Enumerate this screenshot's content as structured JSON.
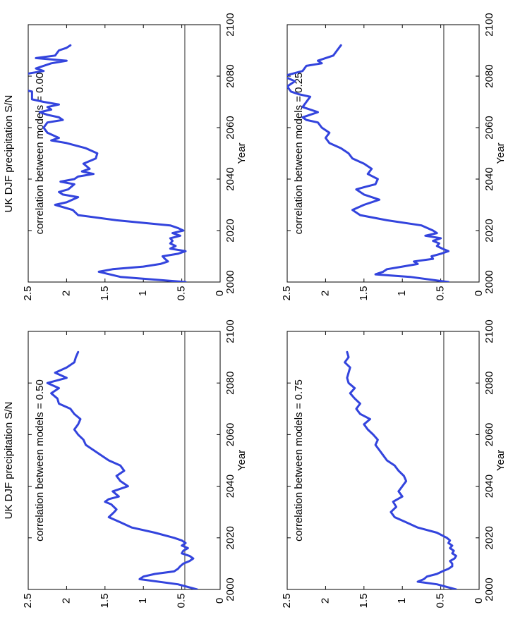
{
  "figure": {
    "ylabel": "UK DJF precipitation S/N",
    "line_color": "#3344dd"
  },
  "chart_data": [
    {
      "type": "line",
      "title": "correlation between models = 0.00",
      "xlabel": "Year",
      "ylabel": "UK DJF precipitation S/N",
      "xlim": [
        2000,
        2100
      ],
      "ylim": [
        0,
        2.5
      ],
      "xticks": [
        "2000",
        "2020",
        "2040",
        "2060",
        "2080",
        "2100"
      ],
      "yticks": [
        "0",
        "0.5",
        "1",
        "1.5",
        "2",
        "2.5"
      ],
      "reference_line": 0.46,
      "series": [
        {
          "x": [
            2000,
            2002,
            2004,
            2005,
            2006,
            2007,
            2008,
            2009,
            2010,
            2011,
            2012,
            2013,
            2014,
            2015,
            2016,
            2017,
            2018,
            2019,
            2020,
            2021,
            2022,
            2024,
            2026,
            2028,
            2030,
            2031,
            2033,
            2034,
            2035,
            2036,
            2038,
            2039,
            2040,
            2041,
            2042,
            2043,
            2044,
            2046,
            2048,
            2050,
            2052,
            2054,
            2055,
            2056,
            2058,
            2060,
            2062,
            2063,
            2064,
            2065,
            2066,
            2067,
            2068,
            2069,
            2070,
            2071,
            2074,
            2075,
            2076,
            2077,
            2078,
            2079,
            2080,
            2082,
            2083,
            2085,
            2086,
            2087,
            2088,
            2090,
            2091,
            2092
          ],
          "y": [
            0.45,
            1.3,
            1.58,
            1.4,
            1.0,
            0.78,
            0.68,
            0.72,
            0.75,
            0.55,
            0.45,
            0.65,
            0.58,
            0.65,
            0.62,
            0.65,
            0.52,
            0.62,
            0.48,
            0.55,
            0.65,
            1.35,
            1.85,
            1.92,
            2.15,
            2.0,
            1.85,
            2.05,
            2.1,
            1.98,
            1.9,
            2.08,
            1.9,
            1.85,
            1.65,
            1.8,
            1.7,
            1.78,
            1.62,
            1.6,
            1.75,
            2.0,
            2.2,
            2.1,
            2.25,
            2.3,
            2.25,
            2.05,
            2.1,
            2.25,
            2.35,
            2.2,
            2.25,
            2.1,
            2.3,
            2.45,
            2.45,
            2.6,
            2.65,
            2.6,
            2.75,
            2.65,
            2.7,
            2.3,
            2.4,
            2.2,
            2.0,
            2.4,
            2.15,
            2.1,
            2.0,
            1.95
          ]
        }
      ]
    },
    {
      "type": "line",
      "title": "correlation between models = 0.25",
      "xlabel": "Year",
      "ylabel": "",
      "xlim": [
        2000,
        2100
      ],
      "ylim": [
        0,
        2.5
      ],
      "xticks": [
        "2000",
        "2020",
        "2040",
        "2060",
        "2080",
        "2100"
      ],
      "yticks": [
        "0",
        "0.5",
        "1",
        "1.5",
        "2",
        "2.5"
      ],
      "reference_line": 0.46,
      "series": [
        {
          "x": [
            2000,
            2002,
            2003,
            2004,
            2005,
            2006,
            2007,
            2008,
            2009,
            2010,
            2011,
            2012,
            2013,
            2014,
            2015,
            2016,
            2017,
            2018,
            2019,
            2020,
            2022,
            2024,
            2026,
            2028,
            2030,
            2032,
            2034,
            2036,
            2037,
            2038,
            2040,
            2042,
            2044,
            2046,
            2048,
            2050,
            2052,
            2054,
            2056,
            2058,
            2060,
            2062,
            2063,
            2064,
            2066,
            2068,
            2070,
            2072,
            2073,
            2074,
            2076,
            2078,
            2080,
            2082,
            2084,
            2085,
            2086,
            2088,
            2090,
            2092
          ],
          "y": [
            0.4,
            0.9,
            1.35,
            1.25,
            1.2,
            1.0,
            0.8,
            0.85,
            0.6,
            0.62,
            0.5,
            0.4,
            0.48,
            0.55,
            0.52,
            0.6,
            0.5,
            0.7,
            0.55,
            0.6,
            0.75,
            1.2,
            1.55,
            1.65,
            1.5,
            1.3,
            1.5,
            1.6,
            1.48,
            1.35,
            1.32,
            1.45,
            1.4,
            1.5,
            1.65,
            1.7,
            1.8,
            1.95,
            2.0,
            1.95,
            2.05,
            2.1,
            2.25,
            2.3,
            2.1,
            2.3,
            2.25,
            2.2,
            2.35,
            2.45,
            2.5,
            2.4,
            2.55,
            2.3,
            2.25,
            2.05,
            2.1,
            1.9,
            1.85,
            1.8
          ]
        }
      ]
    },
    {
      "type": "line",
      "title": "correlation between models = 0.50",
      "xlabel": "Year",
      "ylabel": "UK DJF precipitation S/N",
      "xlim": [
        2000,
        2100
      ],
      "ylim": [
        0,
        2.5
      ],
      "xticks": [
        "2000",
        "2020",
        "2040",
        "2060",
        "2080",
        "2100"
      ],
      "yticks": [
        "0",
        "0.5",
        "1",
        "1.5",
        "2",
        "2.5"
      ],
      "reference_line": 0.46,
      "series": [
        {
          "x": [
            2000,
            2002,
            2004,
            2005,
            2006,
            2007,
            2008,
            2009,
            2010,
            2011,
            2012,
            2013,
            2014,
            2015,
            2016,
            2017,
            2018,
            2019,
            2020,
            2022,
            2024,
            2026,
            2028,
            2030,
            2031,
            2033,
            2034,
            2035,
            2036,
            2038,
            2040,
            2042,
            2044,
            2046,
            2048,
            2050,
            2052,
            2054,
            2056,
            2058,
            2060,
            2062,
            2064,
            2066,
            2068,
            2070,
            2072,
            2074,
            2076,
            2078,
            2080,
            2082,
            2084,
            2086,
            2088,
            2090,
            2092
          ],
          "y": [
            0.3,
            0.55,
            1.05,
            1.0,
            0.85,
            0.6,
            0.55,
            0.52,
            0.48,
            0.4,
            0.35,
            0.4,
            0.5,
            0.48,
            0.42,
            0.5,
            0.45,
            0.5,
            0.6,
            0.85,
            1.15,
            1.3,
            1.45,
            1.38,
            1.35,
            1.42,
            1.5,
            1.45,
            1.32,
            1.4,
            1.2,
            1.3,
            1.35,
            1.25,
            1.3,
            1.45,
            1.55,
            1.65,
            1.75,
            1.78,
            1.85,
            1.9,
            1.85,
            1.82,
            1.9,
            1.95,
            2.1,
            2.12,
            2.2,
            2.1,
            2.25,
            2.0,
            2.15,
            2.0,
            1.9,
            1.88,
            1.85
          ]
        }
      ]
    },
    {
      "type": "line",
      "title": "correlation between models = 0.75",
      "xlabel": "Year",
      "ylabel": "",
      "xlim": [
        2000,
        2100
      ],
      "ylim": [
        0,
        2.5
      ],
      "xticks": [
        "2000",
        "2020",
        "2040",
        "2060",
        "2080",
        "2100"
      ],
      "yticks": [
        "0",
        "0.5",
        "1",
        "1.5",
        "2",
        "2.5"
      ],
      "reference_line": 0.46,
      "series": [
        {
          "x": [
            2000,
            2002,
            2003,
            2004,
            2005,
            2006,
            2007,
            2008,
            2009,
            2010,
            2011,
            2012,
            2013,
            2014,
            2015,
            2016,
            2017,
            2018,
            2019,
            2020,
            2022,
            2024,
            2026,
            2028,
            2030,
            2032,
            2034,
            2036,
            2038,
            2040,
            2042,
            2044,
            2046,
            2048,
            2050,
            2052,
            2054,
            2056,
            2058,
            2060,
            2062,
            2064,
            2066,
            2068,
            2070,
            2072,
            2074,
            2076,
            2078,
            2080,
            2082,
            2084,
            2086,
            2088,
            2090,
            2092
          ],
          "y": [
            0.3,
            0.55,
            0.8,
            0.72,
            0.68,
            0.55,
            0.48,
            0.4,
            0.35,
            0.35,
            0.38,
            0.32,
            0.3,
            0.35,
            0.33,
            0.38,
            0.35,
            0.4,
            0.38,
            0.42,
            0.55,
            0.8,
            0.95,
            1.1,
            1.15,
            1.08,
            1.12,
            1.0,
            1.05,
            1.0,
            0.95,
            0.98,
            1.05,
            1.1,
            1.2,
            1.25,
            1.3,
            1.35,
            1.32,
            1.38,
            1.45,
            1.5,
            1.42,
            1.55,
            1.6,
            1.55,
            1.62,
            1.68,
            1.62,
            1.7,
            1.72,
            1.7,
            1.68,
            1.75,
            1.7,
            1.72
          ]
        }
      ]
    }
  ]
}
